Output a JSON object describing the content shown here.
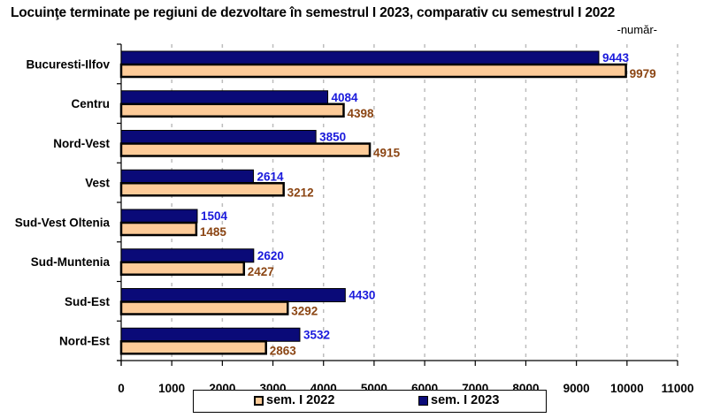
{
  "chart_data": {
    "type": "bar",
    "orientation": "horizontal",
    "title": "Locuinţe terminate pe regiuni de dezvoltare în semestrul I 2023, comparativ cu semestrul I 2022",
    "unit_label": "-număr-",
    "categories": [
      "Bucuresti-Ilfov",
      "Centru",
      "Nord-Vest",
      "Vest",
      "Sud-Vest Oltenia",
      "Sud-Muntenia",
      "Sud-Est",
      "Nord-Est"
    ],
    "series": [
      {
        "name": "sem. I 2023",
        "color": "#0a0a78",
        "label_color": "#1a1adc",
        "values": [
          9443,
          4084,
          3850,
          2614,
          1504,
          2620,
          4430,
          3532
        ]
      },
      {
        "name": "sem. I 2022",
        "color": "#fdcb98",
        "label_color": "#8b4513",
        "values": [
          9979,
          4398,
          4915,
          3212,
          1485,
          2427,
          3292,
          2863
        ]
      }
    ],
    "xlim": [
      0,
      11000
    ],
    "xticks": [
      0,
      1000,
      2000,
      3000,
      4000,
      5000,
      6000,
      7000,
      8000,
      9000,
      10000,
      11000
    ],
    "xlabel": "",
    "ylabel": "",
    "grid": "vertical dashed",
    "legend_position": "bottom"
  },
  "legend": {
    "item_2022": "sem. I 2022",
    "item_2023": "sem. I 2023"
  }
}
